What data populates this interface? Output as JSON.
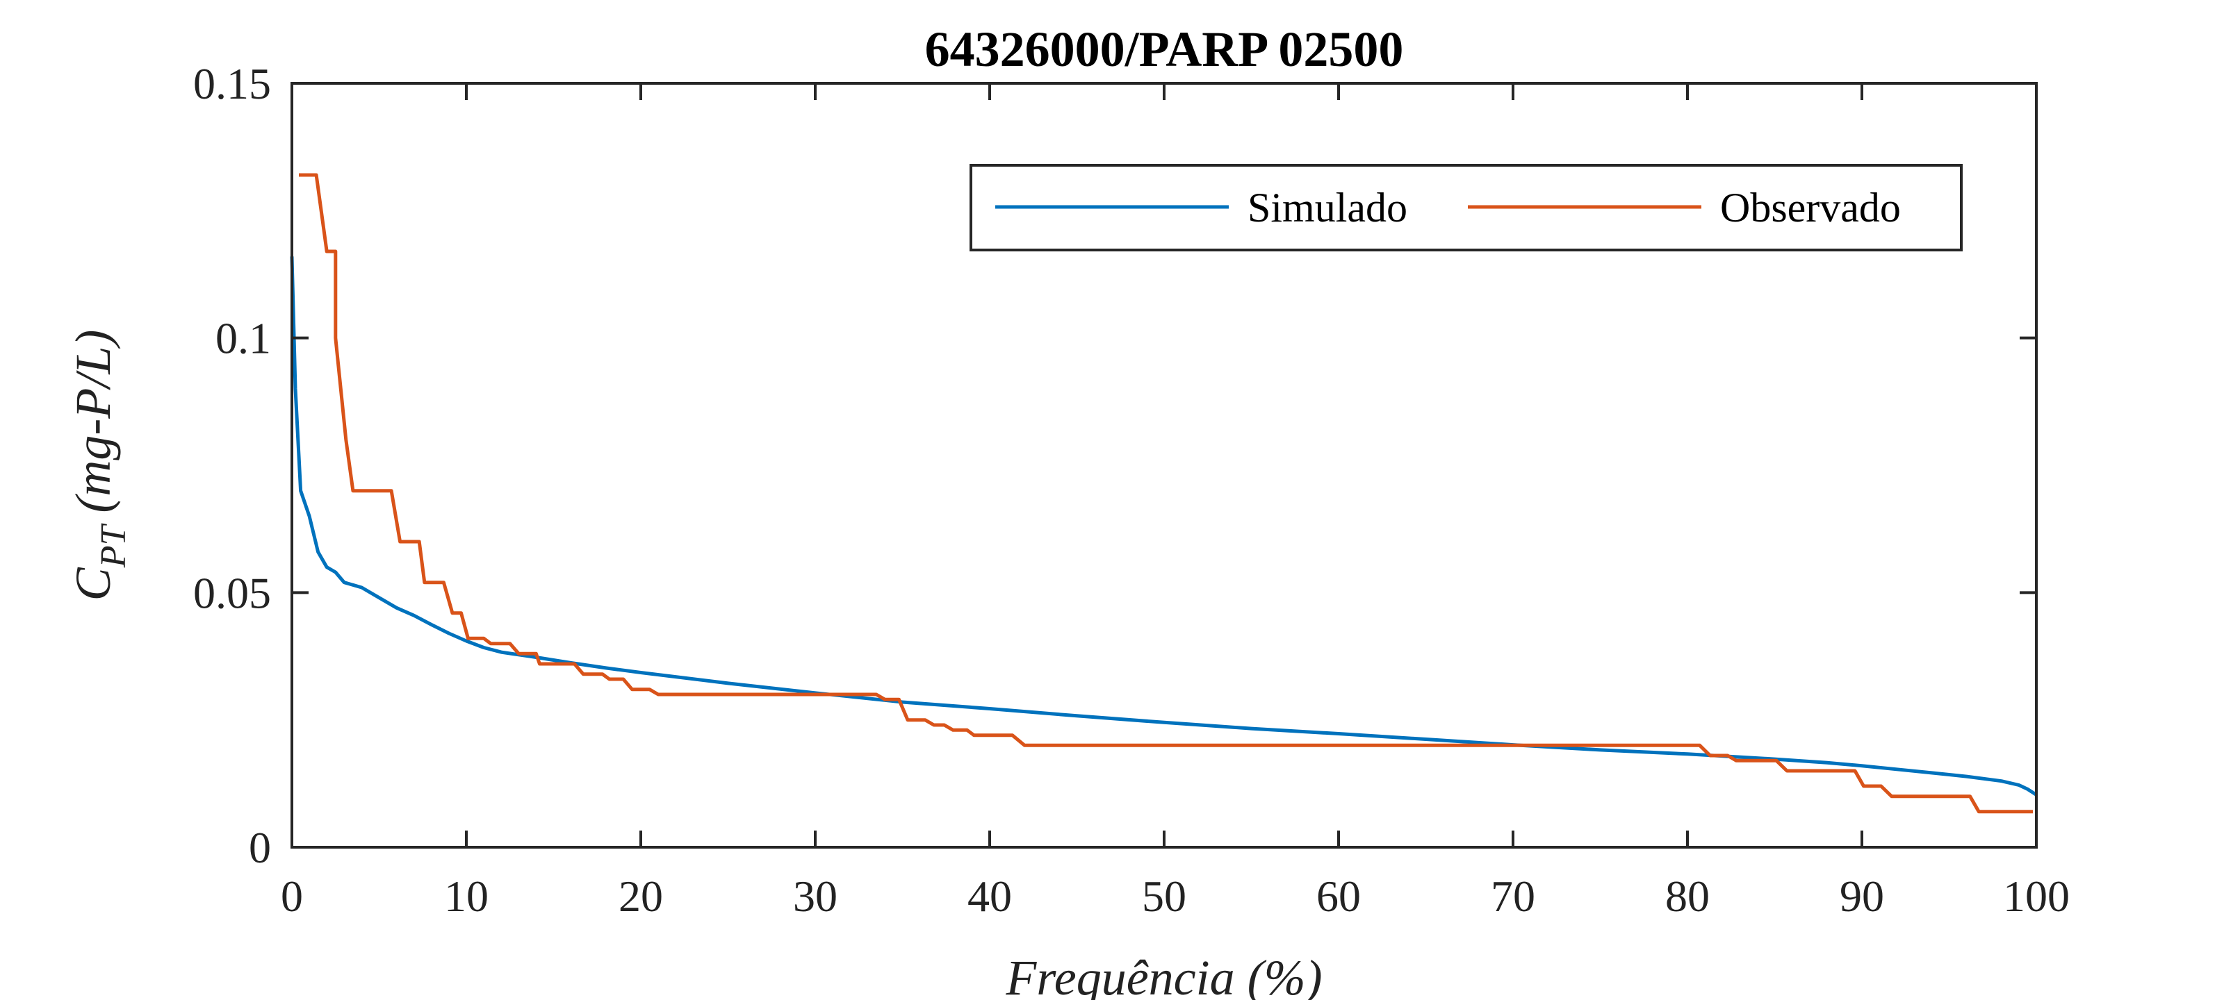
{
  "chart_data": {
    "type": "line",
    "title": "64326000/PARP 02500",
    "xlabel": "Frequência (%)",
    "ylabel": {
      "main": "C",
      "sub": "PT",
      "rest": " (mg-P/L)"
    },
    "xlim": [
      0,
      100
    ],
    "ylim": [
      0,
      0.15
    ],
    "xticks": [
      0,
      10,
      20,
      30,
      40,
      50,
      60,
      70,
      80,
      90,
      100
    ],
    "xtick_labels": [
      "0",
      "10",
      "20",
      "30",
      "40",
      "50",
      "60",
      "70",
      "80",
      "90",
      "100"
    ],
    "yticks": [
      0,
      0.05,
      0.1,
      0.15
    ],
    "ytick_labels": [
      "0",
      "0.05",
      "0.1",
      "0.15"
    ],
    "grid": false,
    "legend_position": "top-right",
    "series": [
      {
        "name": "Simulado",
        "color": "#0072BD",
        "x": [
          0,
          0.2,
          0.5,
          1,
          1.5,
          2,
          2.5,
          3,
          4,
          5,
          6,
          7,
          8,
          9,
          10,
          11,
          12,
          14,
          16,
          18,
          20,
          25,
          30,
          35,
          40,
          45,
          50,
          55,
          60,
          65,
          70,
          75,
          80,
          85,
          88,
          90,
          92,
          94,
          96,
          98,
          99,
          99.5,
          100
        ],
        "y": [
          0.116,
          0.09,
          0.07,
          0.065,
          0.058,
          0.055,
          0.054,
          0.052,
          0.051,
          0.049,
          0.047,
          0.0455,
          0.0437,
          0.042,
          0.0405,
          0.0392,
          0.0383,
          0.0373,
          0.0362,
          0.0352,
          0.0343,
          0.0322,
          0.0303,
          0.0285,
          0.0272,
          0.0258,
          0.0245,
          0.0233,
          0.0223,
          0.0212,
          0.0201,
          0.0191,
          0.0183,
          0.0173,
          0.0166,
          0.016,
          0.0153,
          0.0146,
          0.0139,
          0.013,
          0.0122,
          0.0114,
          0.0103
        ]
      },
      {
        "name": "Observado",
        "color": "#D95319",
        "x": [
          0.4,
          1.4,
          2,
          2.5,
          2.5,
          3.1,
          3.5,
          5.7,
          6.2,
          7.3,
          7.6,
          8.7,
          9.2,
          9.7,
          10.1,
          11,
          11.4,
          12.5,
          13,
          14,
          14.2,
          16.2,
          16.7,
          17.8,
          18.2,
          19,
          19.5,
          20.5,
          21,
          33.5,
          34,
          34.8,
          35.3,
          36.3,
          36.8,
          37.4,
          37.9,
          38.7,
          39.1,
          41.3,
          42,
          80.7,
          81.3,
          82.3,
          82.8,
          85.1,
          85.7,
          89.6,
          90.1,
          91.1,
          91.7,
          96.2,
          96.7,
          99.8
        ],
        "y": [
          0.132,
          0.132,
          0.117,
          0.117,
          0.1,
          0.08,
          0.07,
          0.07,
          0.06,
          0.06,
          0.052,
          0.052,
          0.046,
          0.046,
          0.041,
          0.041,
          0.04,
          0.04,
          0.038,
          0.038,
          0.036,
          0.036,
          0.034,
          0.034,
          0.033,
          0.033,
          0.031,
          0.031,
          0.03,
          0.03,
          0.029,
          0.029,
          0.025,
          0.025,
          0.024,
          0.024,
          0.023,
          0.023,
          0.022,
          0.022,
          0.02,
          0.02,
          0.018,
          0.018,
          0.017,
          0.017,
          0.015,
          0.015,
          0.012,
          0.012,
          0.01,
          0.01,
          0.007,
          0.007
        ]
      }
    ]
  }
}
